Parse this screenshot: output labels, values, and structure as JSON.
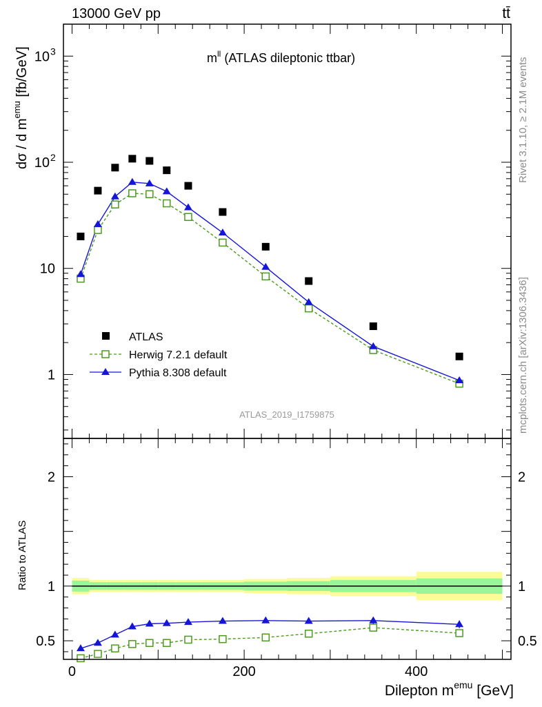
{
  "header": {
    "energy_label": "13000 GeV pp",
    "process_label": "tt̄",
    "side_label_top": "Rivet 3.1.10, ≥ 2.1M events",
    "side_label_bottom": "mcplots.cern.ch [arXiv:1306.3436]",
    "watermark": "ATLAS_2019_I1759875"
  },
  "chart_data": {
    "type": "scatter",
    "title": "m^ll (ATLAS dileptonic ttbar)",
    "title_main": "m",
    "title_sup": "ll",
    "title_rest": " (ATLAS dileptonic ttbar)",
    "xlabel": "Dilepton m^emu [GeV]",
    "xlabel_main": "Dilepton m",
    "xlabel_sup": "emu",
    "xlabel_unit": " [GeV]",
    "ylabel_main": "dσ / d m",
    "ylabel_sup": "emu",
    "ylabel_unit": " [fb/GeV]",
    "ratio_ylabel": "Ratio to ATLAS",
    "xlim": [
      -10,
      510
    ],
    "ylim": [
      0.25,
      2000
    ],
    "yscale": "log",
    "ratio_ylim": [
      0.33,
      2.35
    ],
    "x_ticks": [
      0,
      200,
      400
    ],
    "y_ticks": [
      {
        "value": 1,
        "label": "1",
        "sup": ""
      },
      {
        "value": 10,
        "label": "10",
        "sup": ""
      },
      {
        "value": 100,
        "label": "10",
        "sup": "2"
      },
      {
        "value": 1000,
        "label": "10",
        "sup": "3"
      }
    ],
    "ratio_ticks": [
      {
        "value": 0.5,
        "label": "0.5"
      },
      {
        "value": 1,
        "label": "1"
      },
      {
        "value": 2,
        "label": "2"
      }
    ],
    "bin_edges": [
      0,
      20,
      40,
      60,
      80,
      100,
      120,
      150,
      200,
      250,
      300,
      400,
      500
    ],
    "x": [
      10,
      30,
      50,
      70,
      90,
      110,
      135,
      175,
      225,
      275,
      350,
      450
    ],
    "series": [
      {
        "name": "ATLAS",
        "marker": "square-filled",
        "color": "#000000",
        "values": [
          20,
          54,
          89,
          108,
          103,
          84,
          60,
          34,
          16,
          7.6,
          2.85,
          1.48
        ]
      },
      {
        "name": "Herwig 7.2.1 default",
        "marker": "square-open",
        "color": "#4b9a1e",
        "line": "dashed",
        "values": [
          8.0,
          23,
          40,
          51,
          50,
          41,
          30.5,
          17.5,
          8.4,
          4.2,
          1.7,
          0.82
        ]
      },
      {
        "name": "Pythia 8.308 default",
        "marker": "triangle-filled",
        "color": "#1515d8",
        "line": "solid",
        "values": [
          8.8,
          26,
          47.5,
          65,
          63,
          53,
          37.5,
          21.7,
          10.3,
          4.8,
          1.84,
          0.88
        ]
      }
    ],
    "ratio": {
      "herwig": [
        0.34,
        0.38,
        0.43,
        0.47,
        0.48,
        0.48,
        0.51,
        0.515,
        0.53,
        0.565,
        0.62,
        0.57
      ],
      "pythia": [
        0.43,
        0.48,
        0.555,
        0.63,
        0.655,
        0.66,
        0.67,
        0.68,
        0.685,
        0.68,
        0.685,
        0.65
      ],
      "pythia_err": [
        0.02,
        0.01,
        0.01,
        0.01,
        0.01,
        0.01,
        0.01,
        0.01,
        0.01,
        0.02,
        0.03,
        0.035
      ],
      "band_inner": [
        0.05,
        0.035,
        0.035,
        0.035,
        0.035,
        0.035,
        0.035,
        0.035,
        0.04,
        0.045,
        0.055,
        0.07
      ],
      "band_outer": [
        0.075,
        0.055,
        0.055,
        0.055,
        0.055,
        0.055,
        0.055,
        0.055,
        0.065,
        0.075,
        0.09,
        0.13
      ]
    },
    "colors": {
      "band_inner": "#98f598",
      "band_outer": "#fcfc96"
    }
  }
}
